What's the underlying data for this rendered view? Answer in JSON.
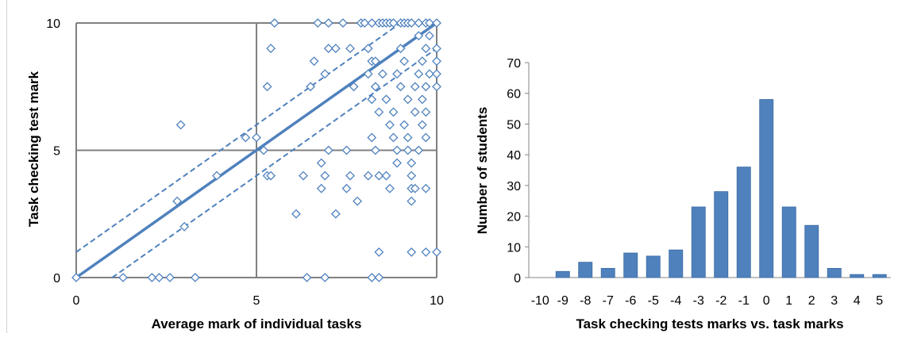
{
  "chart_data": [
    {
      "type": "scatter",
      "title": "",
      "xlabel": "Average mark of individual tasks",
      "ylabel": "Task checking test mark",
      "xlim": [
        0,
        10
      ],
      "ylim": [
        0,
        10
      ],
      "x_ticks": [
        "0",
        "5",
        "10"
      ],
      "y_ticks": [
        "0",
        "5",
        "10"
      ],
      "grid": true,
      "colors": {
        "marker": "#4f81bd",
        "line": "#4f81bd",
        "grid": "#808080"
      },
      "lines": [
        {
          "kind": "identity",
          "style": "solid",
          "points": [
            [
              0,
              0
            ],
            [
              10,
              10
            ]
          ]
        },
        {
          "kind": "upper",
          "style": "dashed",
          "points": [
            [
              0,
              1
            ],
            [
              9,
              10
            ]
          ]
        },
        {
          "kind": "lower",
          "style": "dashed",
          "points": [
            [
              1,
              0
            ],
            [
              10,
              9
            ]
          ]
        }
      ],
      "points": [
        [
          0,
          0
        ],
        [
          1.3,
          0
        ],
        [
          2.1,
          0
        ],
        [
          2.3,
          0
        ],
        [
          2.6,
          0
        ],
        [
          3.3,
          0
        ],
        [
          6.4,
          0
        ],
        [
          6.9,
          0
        ],
        [
          8.2,
          0
        ],
        [
          8.4,
          0
        ],
        [
          2.9,
          6
        ],
        [
          2.8,
          3
        ],
        [
          3,
          2
        ],
        [
          3.9,
          4
        ],
        [
          4.7,
          5.5
        ],
        [
          5,
          5.5
        ],
        [
          5.2,
          5
        ],
        [
          5.3,
          4
        ],
        [
          5.4,
          4
        ],
        [
          5.3,
          7.5
        ],
        [
          5.5,
          10
        ],
        [
          5.4,
          9
        ],
        [
          6.1,
          2.5
        ],
        [
          6.3,
          4
        ],
        [
          6.5,
          7.5
        ],
        [
          6.6,
          8.5
        ],
        [
          6.8,
          3.5
        ],
        [
          6.9,
          4
        ],
        [
          7,
          5
        ],
        [
          6.8,
          4.5
        ],
        [
          6.9,
          8
        ],
        [
          7.0,
          9
        ],
        [
          7.2,
          9
        ],
        [
          7.2,
          2.5
        ],
        [
          6.7,
          10
        ],
        [
          7.0,
          10
        ],
        [
          7.4,
          10
        ],
        [
          7.5,
          5
        ],
        [
          7.5,
          3.5
        ],
        [
          7.6,
          4
        ],
        [
          7.7,
          7.5
        ],
        [
          7.6,
          9
        ],
        [
          7.8,
          3
        ],
        [
          7.9,
          10
        ],
        [
          8.1,
          9
        ],
        [
          8.0,
          10
        ],
        [
          8.2,
          10
        ],
        [
          8.4,
          10
        ],
        [
          8.5,
          10
        ],
        [
          8.6,
          10
        ],
        [
          8.7,
          10
        ],
        [
          8.8,
          10
        ],
        [
          9.0,
          10
        ],
        [
          9.1,
          10
        ],
        [
          9.2,
          10
        ],
        [
          9.3,
          10
        ],
        [
          9.5,
          10
        ],
        [
          9.7,
          10
        ],
        [
          9.8,
          10
        ],
        [
          10,
          10
        ],
        [
          8.2,
          8.5
        ],
        [
          8.3,
          8.5
        ],
        [
          8.1,
          8
        ],
        [
          8.3,
          7.5
        ],
        [
          8.2,
          7
        ],
        [
          8.4,
          6.5
        ],
        [
          8.2,
          5.5
        ],
        [
          8.3,
          5
        ],
        [
          8.1,
          4
        ],
        [
          8.4,
          4
        ],
        [
          8.6,
          4
        ],
        [
          8.7,
          3.5
        ],
        [
          8.4,
          1
        ],
        [
          8.5,
          8
        ],
        [
          8.6,
          7
        ],
        [
          8.7,
          6
        ],
        [
          8.8,
          5.5
        ],
        [
          8.9,
          5
        ],
        [
          8.9,
          4.5
        ],
        [
          8.8,
          6.5
        ],
        [
          8.9,
          8
        ],
        [
          9.0,
          7.5
        ],
        [
          9.0,
          9
        ],
        [
          9.1,
          8.5
        ],
        [
          9.1,
          6
        ],
        [
          9.2,
          7
        ],
        [
          9.2,
          5.5
        ],
        [
          9.2,
          5
        ],
        [
          9.3,
          4.5
        ],
        [
          9.3,
          4
        ],
        [
          9.3,
          3.5
        ],
        [
          9.3,
          3
        ],
        [
          9.3,
          1
        ],
        [
          9.4,
          3.5
        ],
        [
          9.4,
          6.5
        ],
        [
          9.4,
          7.5
        ],
        [
          9.5,
          8
        ],
        [
          9.5,
          9.5
        ],
        [
          9.5,
          5
        ],
        [
          9.6,
          6
        ],
        [
          9.6,
          7
        ],
        [
          9.6,
          8.5
        ],
        [
          9.7,
          9
        ],
        [
          9.7,
          7.5
        ],
        [
          9.7,
          6.5
        ],
        [
          9.7,
          5.5
        ],
        [
          9.7,
          3.5
        ],
        [
          9.7,
          1
        ],
        [
          9.8,
          8
        ],
        [
          9.8,
          9.5
        ],
        [
          10,
          9
        ],
        [
          10,
          8.5
        ],
        [
          10,
          8
        ],
        [
          10,
          7.5
        ],
        [
          10,
          1
        ]
      ]
    },
    {
      "type": "bar",
      "title": "",
      "xlabel": "Task checking tests marks vs. task marks",
      "ylabel": "Number of students",
      "categories": [
        "-10",
        "-9",
        "-8",
        "-7",
        "-6",
        "-5",
        "-4",
        "-3",
        "-2",
        "-1",
        "0",
        "1",
        "2",
        "3",
        "4",
        "5"
      ],
      "values": [
        0,
        2,
        5,
        3,
        8,
        7,
        9,
        23,
        28,
        36,
        58,
        23,
        17,
        3,
        1,
        1
      ],
      "ylim": [
        0,
        70
      ],
      "y_ticks": [
        "0",
        "10",
        "20",
        "30",
        "40",
        "50",
        "60",
        "70"
      ],
      "grid": false,
      "colors": {
        "bar": "#4f81bd",
        "bar_edge": "#3a6aa3",
        "axis": "#868686"
      }
    }
  ]
}
